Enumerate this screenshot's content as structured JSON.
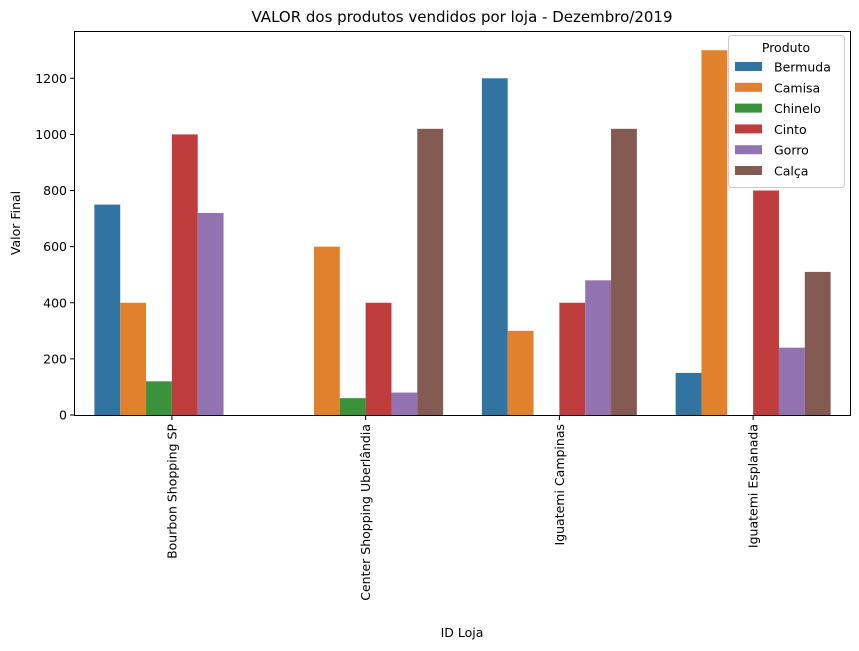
{
  "chart_data": {
    "type": "bar",
    "title": "VALOR dos produtos vendidos por loja - Dezembro/2019",
    "xlabel": "ID Loja",
    "ylabel": "Valor Final",
    "ylim": [
      0,
      1365
    ],
    "yticks": [
      0,
      200,
      400,
      600,
      800,
      1000,
      1200
    ],
    "categories": [
      "Bourbon Shopping SP",
      "Center Shopping Uberlândia",
      "Iguatemi Campinas",
      "Iguatemi Esplanada"
    ],
    "legend": {
      "title": "Produto",
      "placement": "top-right"
    },
    "grid": false,
    "series": [
      {
        "name": "Bermuda",
        "color": "#3274a1",
        "values": [
          750,
          null,
          1200,
          150
        ]
      },
      {
        "name": "Camisa",
        "color": "#e1812c",
        "values": [
          400,
          600,
          300,
          1300
        ]
      },
      {
        "name": "Chinelo",
        "color": "#3a923a",
        "values": [
          120,
          60,
          null,
          null
        ]
      },
      {
        "name": "Cinto",
        "color": "#c03d3e",
        "values": [
          1000,
          400,
          400,
          800
        ]
      },
      {
        "name": "Gorro",
        "color": "#9372b2",
        "values": [
          720,
          80,
          480,
          240
        ]
      },
      {
        "name": "Calça",
        "color": "#845b53",
        "values": [
          null,
          1020,
          1020,
          510
        ]
      }
    ]
  }
}
